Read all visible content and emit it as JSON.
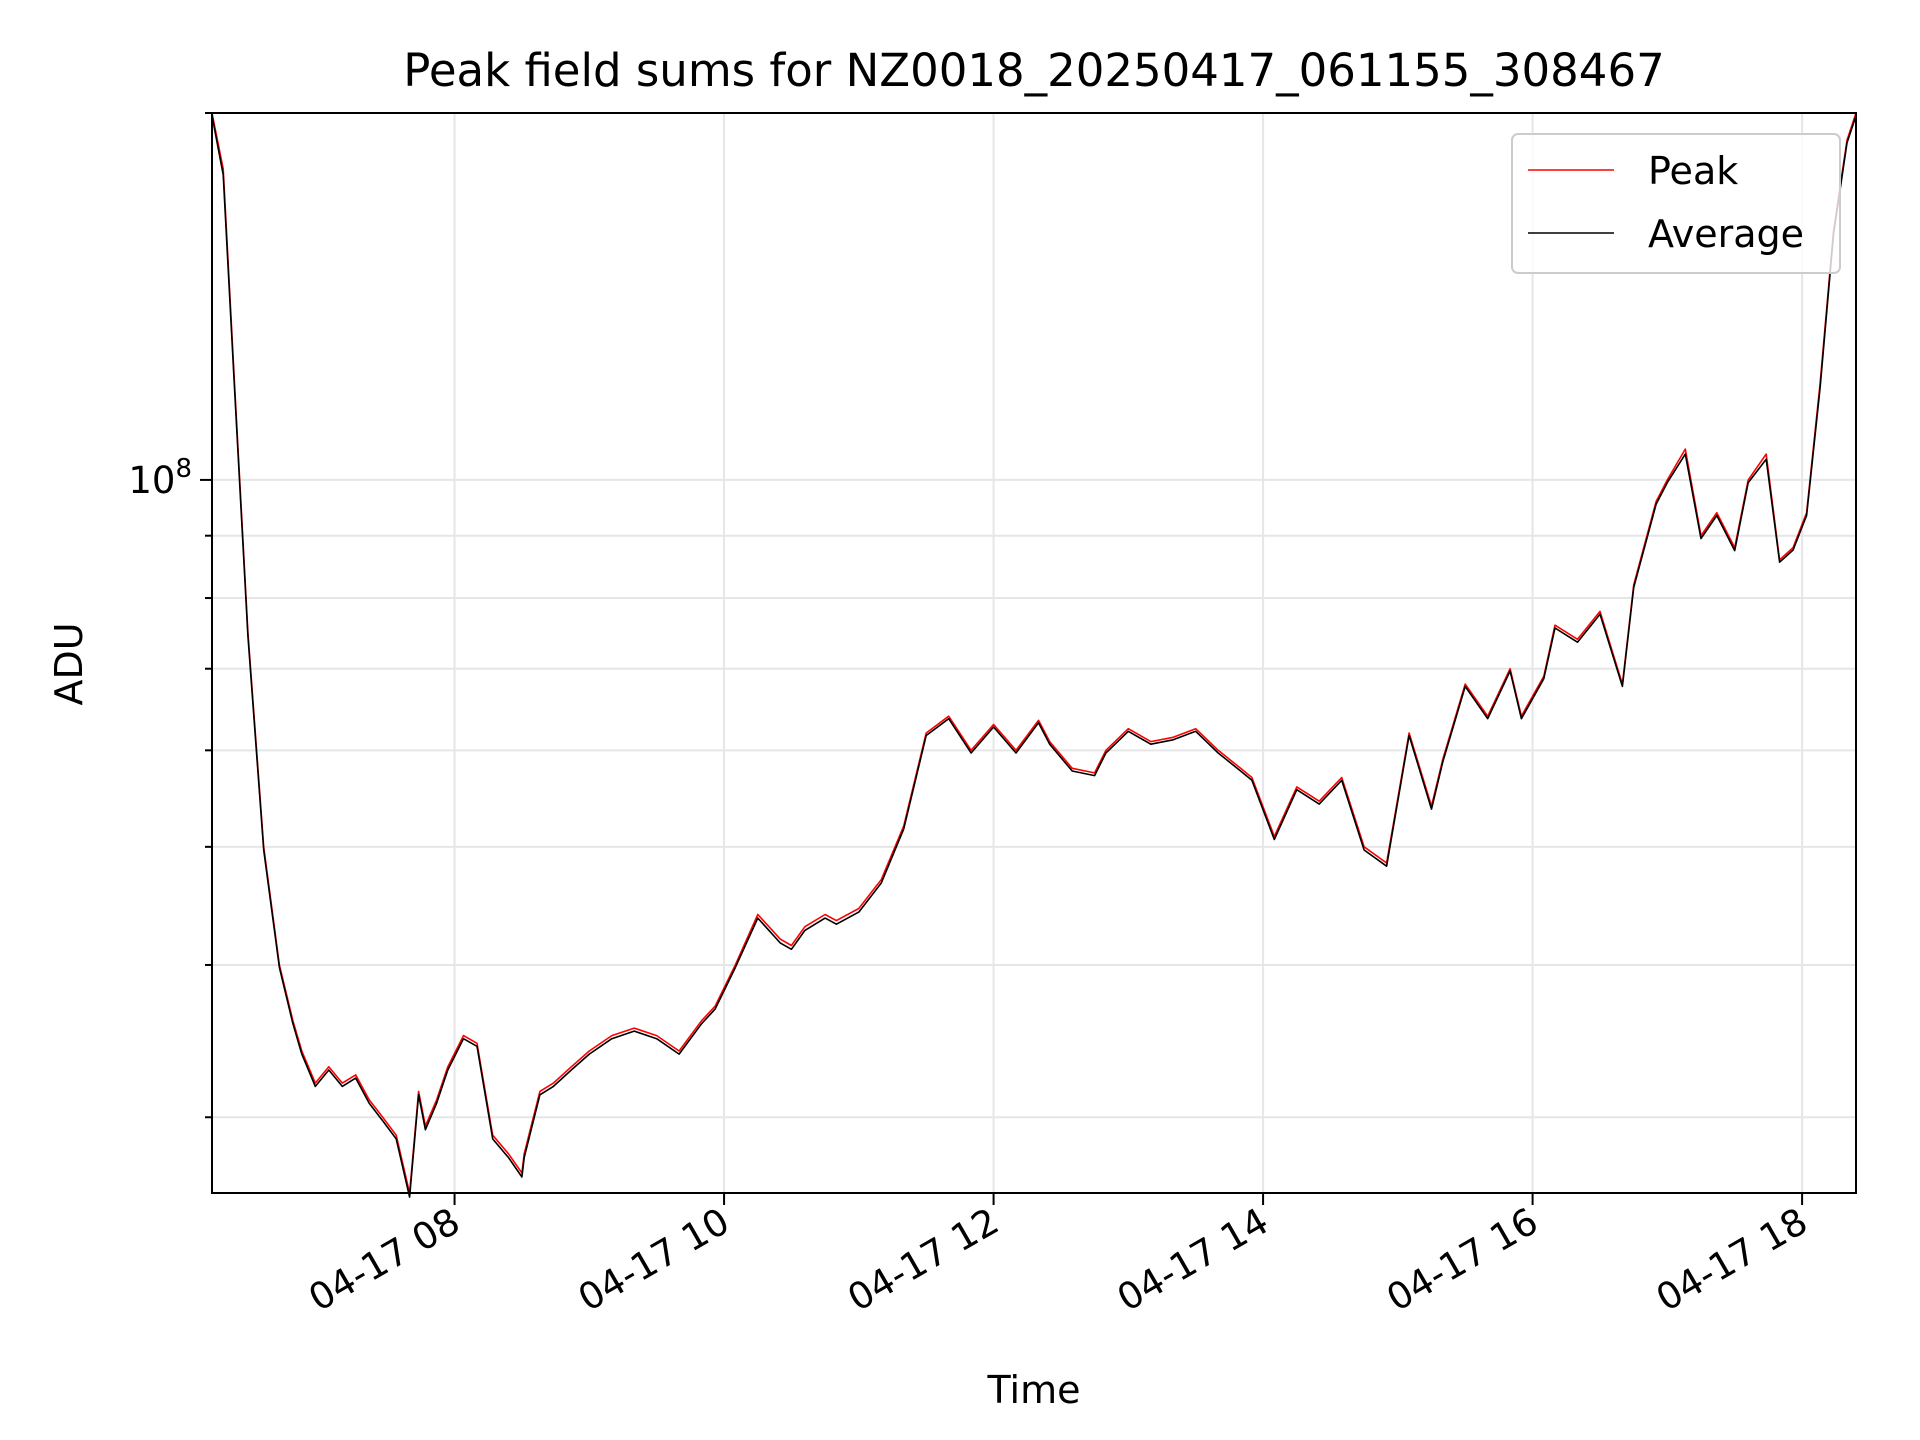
{
  "chart_data": {
    "type": "line",
    "title": "Peak field sums for NZ0018_20250417_061155_308467",
    "xlabel": "Time",
    "ylabel": "ADU",
    "y_scale": "log",
    "ylim": [
      26000000,
      200000000
    ],
    "xlim": [
      "2025-04-17 06:12",
      "2025-04-17 18:24"
    ],
    "x_ticks": [
      "2025-04-17 08:00",
      "2025-04-17 10:00",
      "2025-04-17 12:00",
      "2025-04-17 14:00",
      "2025-04-17 16:00",
      "2025-04-17 18:00"
    ],
    "x_tick_labels": [
      "04-17 08",
      "04-17 10",
      "04-17 12",
      "04-17 14",
      "04-17 16",
      "04-17 18"
    ],
    "y_major_tick": {
      "value": 100000000,
      "base": "10",
      "exp": "8"
    },
    "y_minor_ticks": [
      30000000,
      40000000,
      50000000,
      60000000,
      70000000,
      80000000,
      90000000,
      200000000
    ],
    "grid": true,
    "legend": "top-right",
    "series": [
      {
        "name": "Peak",
        "color": "#ff0000",
        "x": [
          "2025-04-17 06:12",
          "2025-04-17 06:17",
          "2025-04-17 06:22",
          "2025-04-17 06:28",
          "2025-04-17 06:35",
          "2025-04-17 06:42",
          "2025-04-17 06:48",
          "2025-04-17 06:52",
          "2025-04-17 06:58",
          "2025-04-17 07:04",
          "2025-04-17 07:10",
          "2025-04-17 07:16",
          "2025-04-17 07:22",
          "2025-04-17 07:28",
          "2025-04-17 07:34",
          "2025-04-17 07:40",
          "2025-04-17 07:44",
          "2025-04-17 07:47",
          "2025-04-17 07:52",
          "2025-04-17 07:57",
          "2025-04-17 08:04",
          "2025-04-17 08:10",
          "2025-04-17 08:17",
          "2025-04-17 08:24",
          "2025-04-17 08:30",
          "2025-04-17 08:31",
          "2025-04-17 08:38",
          "2025-04-17 08:44",
          "2025-04-17 08:52",
          "2025-04-17 09:00",
          "2025-04-17 09:10",
          "2025-04-17 09:20",
          "2025-04-17 09:30",
          "2025-04-17 09:40",
          "2025-04-17 09:50",
          "2025-04-17 09:56",
          "2025-04-17 10:05",
          "2025-04-17 10:15",
          "2025-04-17 10:25",
          "2025-04-17 10:30",
          "2025-04-17 10:36",
          "2025-04-17 10:45",
          "2025-04-17 10:50",
          "2025-04-17 11:00",
          "2025-04-17 11:10",
          "2025-04-17 11:20",
          "2025-04-17 11:30",
          "2025-04-17 11:40",
          "2025-04-17 11:50",
          "2025-04-17 12:00",
          "2025-04-17 12:10",
          "2025-04-17 12:20",
          "2025-04-17 12:25",
          "2025-04-17 12:35",
          "2025-04-17 12:45",
          "2025-04-17 12:50",
          "2025-04-17 13:00",
          "2025-04-17 13:10",
          "2025-04-17 13:20",
          "2025-04-17 13:30",
          "2025-04-17 13:40",
          "2025-04-17 13:50",
          "2025-04-17 13:55",
          "2025-04-17 14:05",
          "2025-04-17 14:15",
          "2025-04-17 14:25",
          "2025-04-17 14:35",
          "2025-04-17 14:45",
          "2025-04-17 14:55",
          "2025-04-17 15:05",
          "2025-04-17 15:15",
          "2025-04-17 15:20",
          "2025-04-17 15:30",
          "2025-04-17 15:40",
          "2025-04-17 15:50",
          "2025-04-17 15:55",
          "2025-04-17 16:05",
          "2025-04-17 16:10",
          "2025-04-17 16:20",
          "2025-04-17 16:30",
          "2025-04-17 16:40",
          "2025-04-17 16:45",
          "2025-04-17 16:55",
          "2025-04-17 17:00",
          "2025-04-17 17:08",
          "2025-04-17 17:15",
          "2025-04-17 17:22",
          "2025-04-17 17:30",
          "2025-04-17 17:36",
          "2025-04-17 17:44",
          "2025-04-17 17:50",
          "2025-04-17 17:56",
          "2025-04-17 18:02",
          "2025-04-17 18:08",
          "2025-04-17 18:14",
          "2025-04-17 18:20",
          "2025-04-17 18:24"
        ],
        "y": [
          200000000,
          180000000,
          120000000,
          75000000,
          50000000,
          40000000,
          36000000,
          34000000,
          32000000,
          33000000,
          32000000,
          32500000,
          31000000,
          30000000,
          29000000,
          26000000,
          31500000,
          29500000,
          31000000,
          33000000,
          35000000,
          34500000,
          29000000,
          28000000,
          27000000,
          28000000,
          31500000,
          32000000,
          33000000,
          34000000,
          35000000,
          35500000,
          35000000,
          34000000,
          36000000,
          37000000,
          40000000,
          44000000,
          42000000,
          41500000,
          43000000,
          44000000,
          43500000,
          44500000,
          47000000,
          52000000,
          62000000,
          64000000,
          60000000,
          63000000,
          60000000,
          63500000,
          61000000,
          58000000,
          57500000,
          60000000,
          62500000,
          61000000,
          61500000,
          62500000,
          60000000,
          58000000,
          57000000,
          51000000,
          56000000,
          54500000,
          57000000,
          50000000,
          48500000,
          62000000,
          54000000,
          59000000,
          68000000,
          64000000,
          70000000,
          64000000,
          69000000,
          76000000,
          74000000,
          78000000,
          68000000,
          82000000,
          96000000,
          100000000,
          106000000,
          90000000,
          94000000,
          88000000,
          100000000,
          105000000,
          86000000,
          88000000,
          94000000,
          120000000,
          160000000,
          190000000,
          200000000
        ]
      },
      {
        "name": "Average",
        "color": "#000000",
        "x": [
          "2025-04-17 06:12",
          "2025-04-17 06:17",
          "2025-04-17 06:22",
          "2025-04-17 06:28",
          "2025-04-17 06:35",
          "2025-04-17 06:42",
          "2025-04-17 06:48",
          "2025-04-17 06:52",
          "2025-04-17 06:58",
          "2025-04-17 07:04",
          "2025-04-17 07:10",
          "2025-04-17 07:16",
          "2025-04-17 07:22",
          "2025-04-17 07:28",
          "2025-04-17 07:34",
          "2025-04-17 07:40",
          "2025-04-17 07:44",
          "2025-04-17 07:47",
          "2025-04-17 07:52",
          "2025-04-17 07:57",
          "2025-04-17 08:04",
          "2025-04-17 08:10",
          "2025-04-17 08:17",
          "2025-04-17 08:24",
          "2025-04-17 08:30",
          "2025-04-17 08:31",
          "2025-04-17 08:38",
          "2025-04-17 08:44",
          "2025-04-17 08:52",
          "2025-04-17 09:00",
          "2025-04-17 09:10",
          "2025-04-17 09:20",
          "2025-04-17 09:30",
          "2025-04-17 09:40",
          "2025-04-17 09:50",
          "2025-04-17 09:56",
          "2025-04-17 10:05",
          "2025-04-17 10:15",
          "2025-04-17 10:25",
          "2025-04-17 10:30",
          "2025-04-17 10:36",
          "2025-04-17 10:45",
          "2025-04-17 10:50",
          "2025-04-17 11:00",
          "2025-04-17 11:10",
          "2025-04-17 11:20",
          "2025-04-17 11:30",
          "2025-04-17 11:40",
          "2025-04-17 11:50",
          "2025-04-17 12:00",
          "2025-04-17 12:10",
          "2025-04-17 12:20",
          "2025-04-17 12:25",
          "2025-04-17 12:35",
          "2025-04-17 12:45",
          "2025-04-17 12:50",
          "2025-04-17 13:00",
          "2025-04-17 13:10",
          "2025-04-17 13:20",
          "2025-04-17 13:30",
          "2025-04-17 13:40",
          "2025-04-17 13:50",
          "2025-04-17 13:55",
          "2025-04-17 14:05",
          "2025-04-17 14:15",
          "2025-04-17 14:25",
          "2025-04-17 14:35",
          "2025-04-17 14:45",
          "2025-04-17 14:55",
          "2025-04-17 15:05",
          "2025-04-17 15:15",
          "2025-04-17 15:20",
          "2025-04-17 15:30",
          "2025-04-17 15:40",
          "2025-04-17 15:50",
          "2025-04-17 15:55",
          "2025-04-17 16:05",
          "2025-04-17 16:10",
          "2025-04-17 16:20",
          "2025-04-17 16:30",
          "2025-04-17 16:40",
          "2025-04-17 16:45",
          "2025-04-17 16:55",
          "2025-04-17 17:00",
          "2025-04-17 17:08",
          "2025-04-17 17:15",
          "2025-04-17 17:22",
          "2025-04-17 17:30",
          "2025-04-17 17:36",
          "2025-04-17 17:44",
          "2025-04-17 17:50",
          "2025-04-17 17:56",
          "2025-04-17 18:02",
          "2025-04-17 18:08",
          "2025-04-17 18:14",
          "2025-04-17 18:20",
          "2025-04-17 18:24"
        ],
        "y": [
          199000000,
          178000000,
          119000000,
          74500000,
          49700000,
          39800000,
          35800000,
          33800000,
          31800000,
          32800000,
          31800000,
          32300000,
          30800000,
          29800000,
          28800000,
          25800000,
          31300000,
          29300000,
          30800000,
          32800000,
          34800000,
          34300000,
          28800000,
          27800000,
          26800000,
          27800000,
          31300000,
          31800000,
          32800000,
          33800000,
          34800000,
          35300000,
          34800000,
          33800000,
          35800000,
          36800000,
          39800000,
          43700000,
          41700000,
          41200000,
          42700000,
          43700000,
          43200000,
          44200000,
          46700000,
          51700000,
          61700000,
          63700000,
          59700000,
          62700000,
          59700000,
          63200000,
          60700000,
          57700000,
          57200000,
          59700000,
          62200000,
          60700000,
          61200000,
          62200000,
          59700000,
          57700000,
          56700000,
          50700000,
          55700000,
          54200000,
          56700000,
          49700000,
          48200000,
          61700000,
          53700000,
          58700000,
          67700000,
          63700000,
          69700000,
          63700000,
          68700000,
          75600000,
          73600000,
          77600000,
          67700000,
          81600000,
          95500000,
          99500000,
          105000000,
          89500000,
          93500000,
          87500000,
          99500000,
          104000000,
          85600000,
          87600000,
          93500000,
          119000000,
          159000000,
          189000000,
          199000000
        ]
      }
    ]
  }
}
